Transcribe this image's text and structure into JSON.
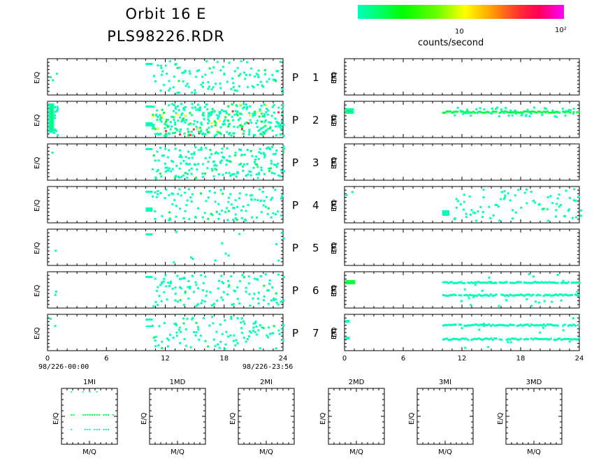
{
  "header": {
    "title": "Orbit 16 E",
    "file": "PLS98226.RDR"
  },
  "colorbar": {
    "unit": "counts/second",
    "tick_labels": [
      "10",
      "10²"
    ],
    "colors": [
      "#00ffb8",
      "#00ff00",
      "#ffff00",
      "#ffa500",
      "#ff3030",
      "#ff00ff"
    ]
  },
  "panel_rows": [
    {
      "label": "P",
      "num": "1",
      "suffix": "E"
    },
    {
      "label": "P",
      "num": "2",
      "suffix": "E"
    },
    {
      "label": "P",
      "num": "3",
      "suffix": "E"
    },
    {
      "label": "P",
      "num": "4",
      "suffix": "E"
    },
    {
      "label": "P",
      "num": "5",
      "suffix": "E"
    },
    {
      "label": "P",
      "num": "6",
      "suffix": "E"
    },
    {
      "label": "P",
      "num": "7",
      "suffix": "E"
    }
  ],
  "time_axis": {
    "ticks": [
      "0",
      "6",
      "12",
      "18",
      "24"
    ],
    "start_label": "98/226-00:00",
    "end_label": "98/226-23:56"
  },
  "ylabel": "E/Q",
  "bottom_panels": [
    {
      "title": "1MI",
      "xlabel": "M/Q",
      "ylabel": "E/Q"
    },
    {
      "title": "1MD",
      "xlabel": "M/Q",
      "ylabel": "E/Q"
    },
    {
      "title": "2MI",
      "xlabel": "M/Q",
      "ylabel": "E/Q"
    },
    {
      "title": "2MD",
      "xlabel": "M/Q",
      "ylabel": "E/Q"
    },
    {
      "title": "3MI",
      "xlabel": "M/Q",
      "ylabel": "E/Q"
    },
    {
      "title": "3MD",
      "xlabel": "M/Q",
      "ylabel": "E/Q"
    }
  ],
  "chart_data": {
    "type": "heatmap",
    "x_range_hours": [
      0,
      24
    ],
    "x_ticks": [
      0,
      6,
      12,
      18,
      24
    ],
    "color_scale": "log counts/second, 1 to 10^2",
    "data_gap_hours": [
      1,
      10
    ],
    "panels_left": [
      "P 1",
      "P 2",
      "P 3",
      "P 4",
      "P 5",
      "P 6",
      "P 7"
    ],
    "panels_right": [
      "P 1 E",
      "P 2 E",
      "P 3 E",
      "P 4 E",
      "P 5 E",
      "P 6 E",
      "P 7 E"
    ],
    "bottom_panels": [
      "1MI",
      "1MD",
      "2MI",
      "2MD",
      "3MI",
      "3MD"
    ]
  }
}
